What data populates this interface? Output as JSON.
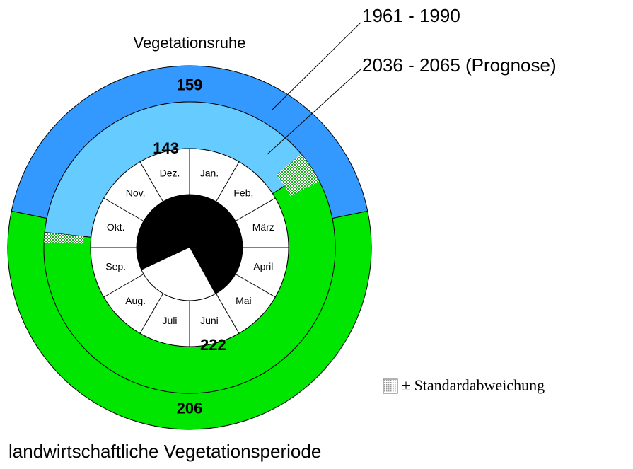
{
  "chart_data": {
    "type": "ring",
    "categories": [
      "Vegetationsruhe",
      "landwirtschaftliche Vegetationsperiode"
    ],
    "series": [
      {
        "name": "1961 - 1990",
        "colors": [
          "#3399ff",
          "#00e600"
        ],
        "values": [
          159,
          206
        ]
      },
      {
        "name": "2036 - 2065 (Prognose)",
        "colors": [
          "#66ccff",
          "#00e600"
        ],
        "values": [
          143,
          222
        ]
      }
    ],
    "months": [
      "Jan.",
      "Feb.",
      "März",
      "April",
      "Mai",
      "Juni",
      "Juli",
      "Aug.",
      "Sep.",
      "Okt.",
      "Nov.",
      "Dez."
    ],
    "legend": "± Standardabweichung"
  }
}
